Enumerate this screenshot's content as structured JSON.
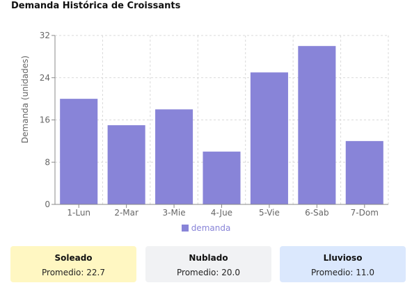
{
  "title": "Demanda Histórica de Croissants",
  "chart_data": {
    "type": "bar",
    "categories": [
      "1-Lun",
      "2-Mar",
      "3-Mie",
      "4-Jue",
      "5-Vie",
      "6-Sab",
      "7-Dom"
    ],
    "series": [
      {
        "name": "demanda",
        "values": [
          20,
          15,
          18,
          10,
          25,
          30,
          12
        ],
        "color": "#8884d8"
      }
    ],
    "ylabel": "Demanda (unidades)",
    "ylim": [
      0,
      32
    ],
    "yticks": [
      0,
      8,
      16,
      24,
      32
    ],
    "grid": true,
    "legend_position": "bottom"
  },
  "weather_cards": [
    {
      "label": "Soleado",
      "average_text": "Promedio: 22.7",
      "color": "#fff7c2"
    },
    {
      "label": "Nublado",
      "average_text": "Promedio: 20.0",
      "color": "#f1f2f4"
    },
    {
      "label": "Lluvioso",
      "average_text": "Promedio: 11.0",
      "color": "#dbe8fd"
    }
  ]
}
